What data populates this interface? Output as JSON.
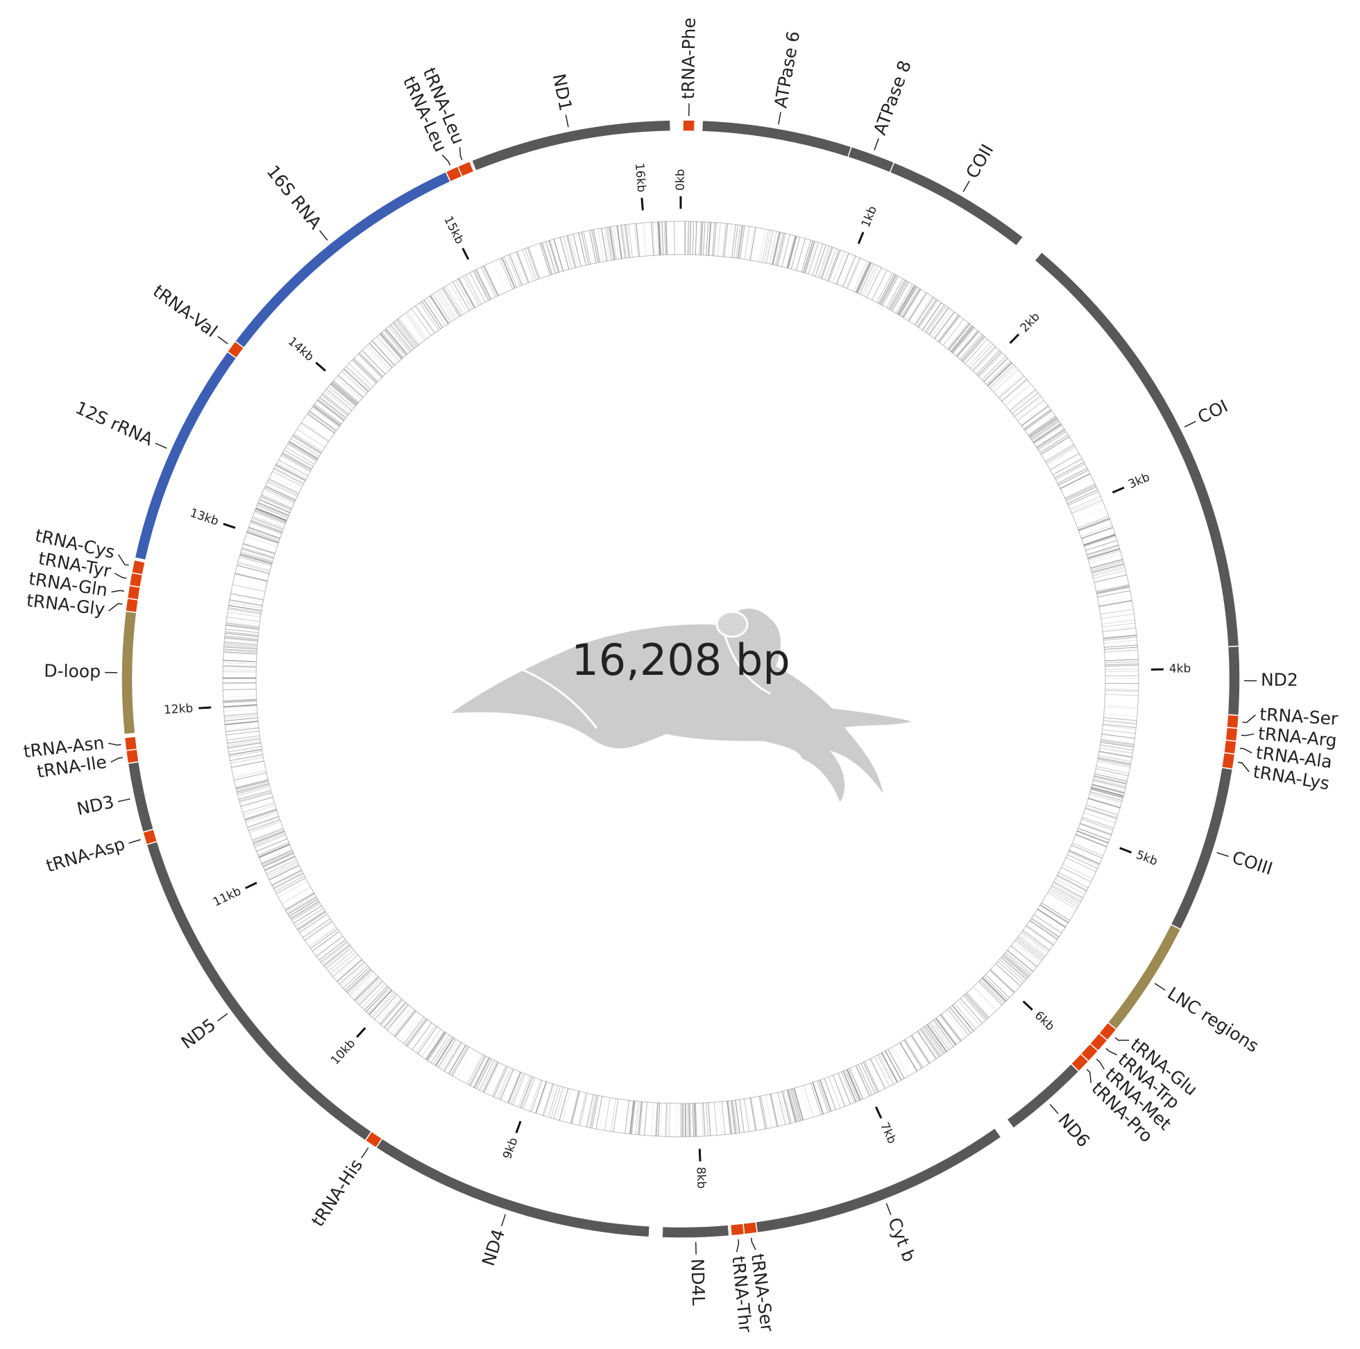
{
  "length": {
    "value": 16208,
    "label": "16,208 bp"
  },
  "features": [
    {
      "label": "tRNA-Phe",
      "start": 10,
      "end": 65,
      "color": "#e0430e"
    },
    {
      "label": "ATPase 6",
      "start": 100,
      "end": 800,
      "color": "#585858"
    },
    {
      "label": "ATPase 8",
      "start": 800,
      "end": 1010,
      "color": "#585858"
    },
    {
      "label": "COII",
      "start": 1010,
      "end": 1700,
      "color": "#585858"
    },
    {
      "label": "COI",
      "start": 1810,
      "end": 3900,
      "color": "#585858"
    },
    {
      "label": "ND2",
      "start": 3900,
      "end": 4220,
      "color": "#585858"
    },
    {
      "label": "tRNA-Ser",
      "start": 4220,
      "end": 4280,
      "color": "#e0430e"
    },
    {
      "label": "tRNA-Arg",
      "start": 4280,
      "end": 4340,
      "color": "#e0430e"
    },
    {
      "label": "tRNA-Ala",
      "start": 4340,
      "end": 4400,
      "color": "#e0430e"
    },
    {
      "label": "tRNA-Lys",
      "start": 4400,
      "end": 4470,
      "color": "#e0430e"
    },
    {
      "label": "COIII",
      "start": 4470,
      "end": 5250,
      "color": "#585858"
    },
    {
      "label": "LNC regions",
      "start": 5250,
      "end": 5800,
      "color": "#9c8a52"
    },
    {
      "label": "tRNA-Glu",
      "start": 5800,
      "end": 5865,
      "color": "#e0430e"
    },
    {
      "label": "tRNA-Trp",
      "start": 5865,
      "end": 5930,
      "color": "#e0430e"
    },
    {
      "label": "tRNA-Met",
      "start": 5930,
      "end": 5995,
      "color": "#e0430e"
    },
    {
      "label": "tRNA-Pro",
      "start": 5995,
      "end": 6060,
      "color": "#e0430e"
    },
    {
      "label": "ND6",
      "start": 6060,
      "end": 6460,
      "color": "#585858"
    },
    {
      "label": "Cyt b",
      "start": 6530,
      "end": 7750,
      "color": "#585858"
    },
    {
      "label": "tRNA-Ser",
      "start": 7750,
      "end": 7810,
      "color": "#e0430e"
    },
    {
      "label": "tRNA-Thr",
      "start": 7810,
      "end": 7870,
      "color": "#e0430e"
    },
    {
      "label": "ND4L",
      "start": 7880,
      "end": 8190,
      "color": "#585858"
    },
    {
      "label": "ND4",
      "start": 8250,
      "end": 9590,
      "color": "#585858"
    },
    {
      "label": "tRNA-His",
      "start": 9590,
      "end": 9650,
      "color": "#e0430e"
    },
    {
      "label": "ND5",
      "start": 9650,
      "end": 11380,
      "color": "#585858"
    },
    {
      "label": "tRNA-Asp",
      "start": 11380,
      "end": 11440,
      "color": "#e0430e"
    },
    {
      "label": "ND3",
      "start": 11440,
      "end": 11765,
      "color": "#585858"
    },
    {
      "label": "tRNA-Ile",
      "start": 11765,
      "end": 11825,
      "color": "#e0430e"
    },
    {
      "label": "tRNA-Asn",
      "start": 11825,
      "end": 11885,
      "color": "#e0430e"
    },
    {
      "label": "D-loop",
      "start": 11900,
      "end": 12470,
      "color": "#9c8a52"
    },
    {
      "label": "tRNA-Gly",
      "start": 12470,
      "end": 12530,
      "color": "#e0430e"
    },
    {
      "label": "tRNA-Gln",
      "start": 12530,
      "end": 12590,
      "color": "#e0430e"
    },
    {
      "label": "tRNA-Tyr",
      "start": 12590,
      "end": 12650,
      "color": "#e0430e"
    },
    {
      "label": "tRNA-Cys",
      "start": 12650,
      "end": 12710,
      "color": "#e0430e"
    },
    {
      "label": "12S rRNA",
      "start": 12720,
      "end": 13770,
      "color": "#3c5fb4"
    },
    {
      "label": "tRNA-Val",
      "start": 13770,
      "end": 13830,
      "color": "#e0430e"
    },
    {
      "label": "16S RNA",
      "start": 13830,
      "end": 15090,
      "color": "#3c5fb4"
    },
    {
      "label": "tRNA-Leu",
      "start": 15090,
      "end": 15150,
      "color": "#e0430e"
    },
    {
      "label": "tRNA-Leu",
      "start": 15150,
      "end": 15210,
      "color": "#e0430e"
    },
    {
      "label": "ND1",
      "start": 15220,
      "end": 16160,
      "color": "#585858"
    }
  ],
  "ticks": [
    {
      "value": 0,
      "label": "0kb"
    },
    {
      "value": 1000,
      "label": "1kb"
    },
    {
      "value": 2000,
      "label": "2kb"
    },
    {
      "value": 3000,
      "label": "3kb"
    },
    {
      "value": 4000,
      "label": "4kb"
    },
    {
      "value": 5000,
      "label": "5kb"
    },
    {
      "value": 6000,
      "label": "6kb"
    },
    {
      "value": 7000,
      "label": "7kb"
    },
    {
      "value": 8000,
      "label": "8kb"
    },
    {
      "value": 9000,
      "label": "9kb"
    },
    {
      "value": 10000,
      "label": "10kb"
    },
    {
      "value": 11000,
      "label": "11kb"
    },
    {
      "value": 12000,
      "label": "12kb"
    },
    {
      "value": 13000,
      "label": "13kb"
    },
    {
      "value": 14000,
      "label": "14kb"
    },
    {
      "value": 15000,
      "label": "15kb"
    },
    {
      "value": 16000,
      "label": "16kb"
    }
  ]
}
